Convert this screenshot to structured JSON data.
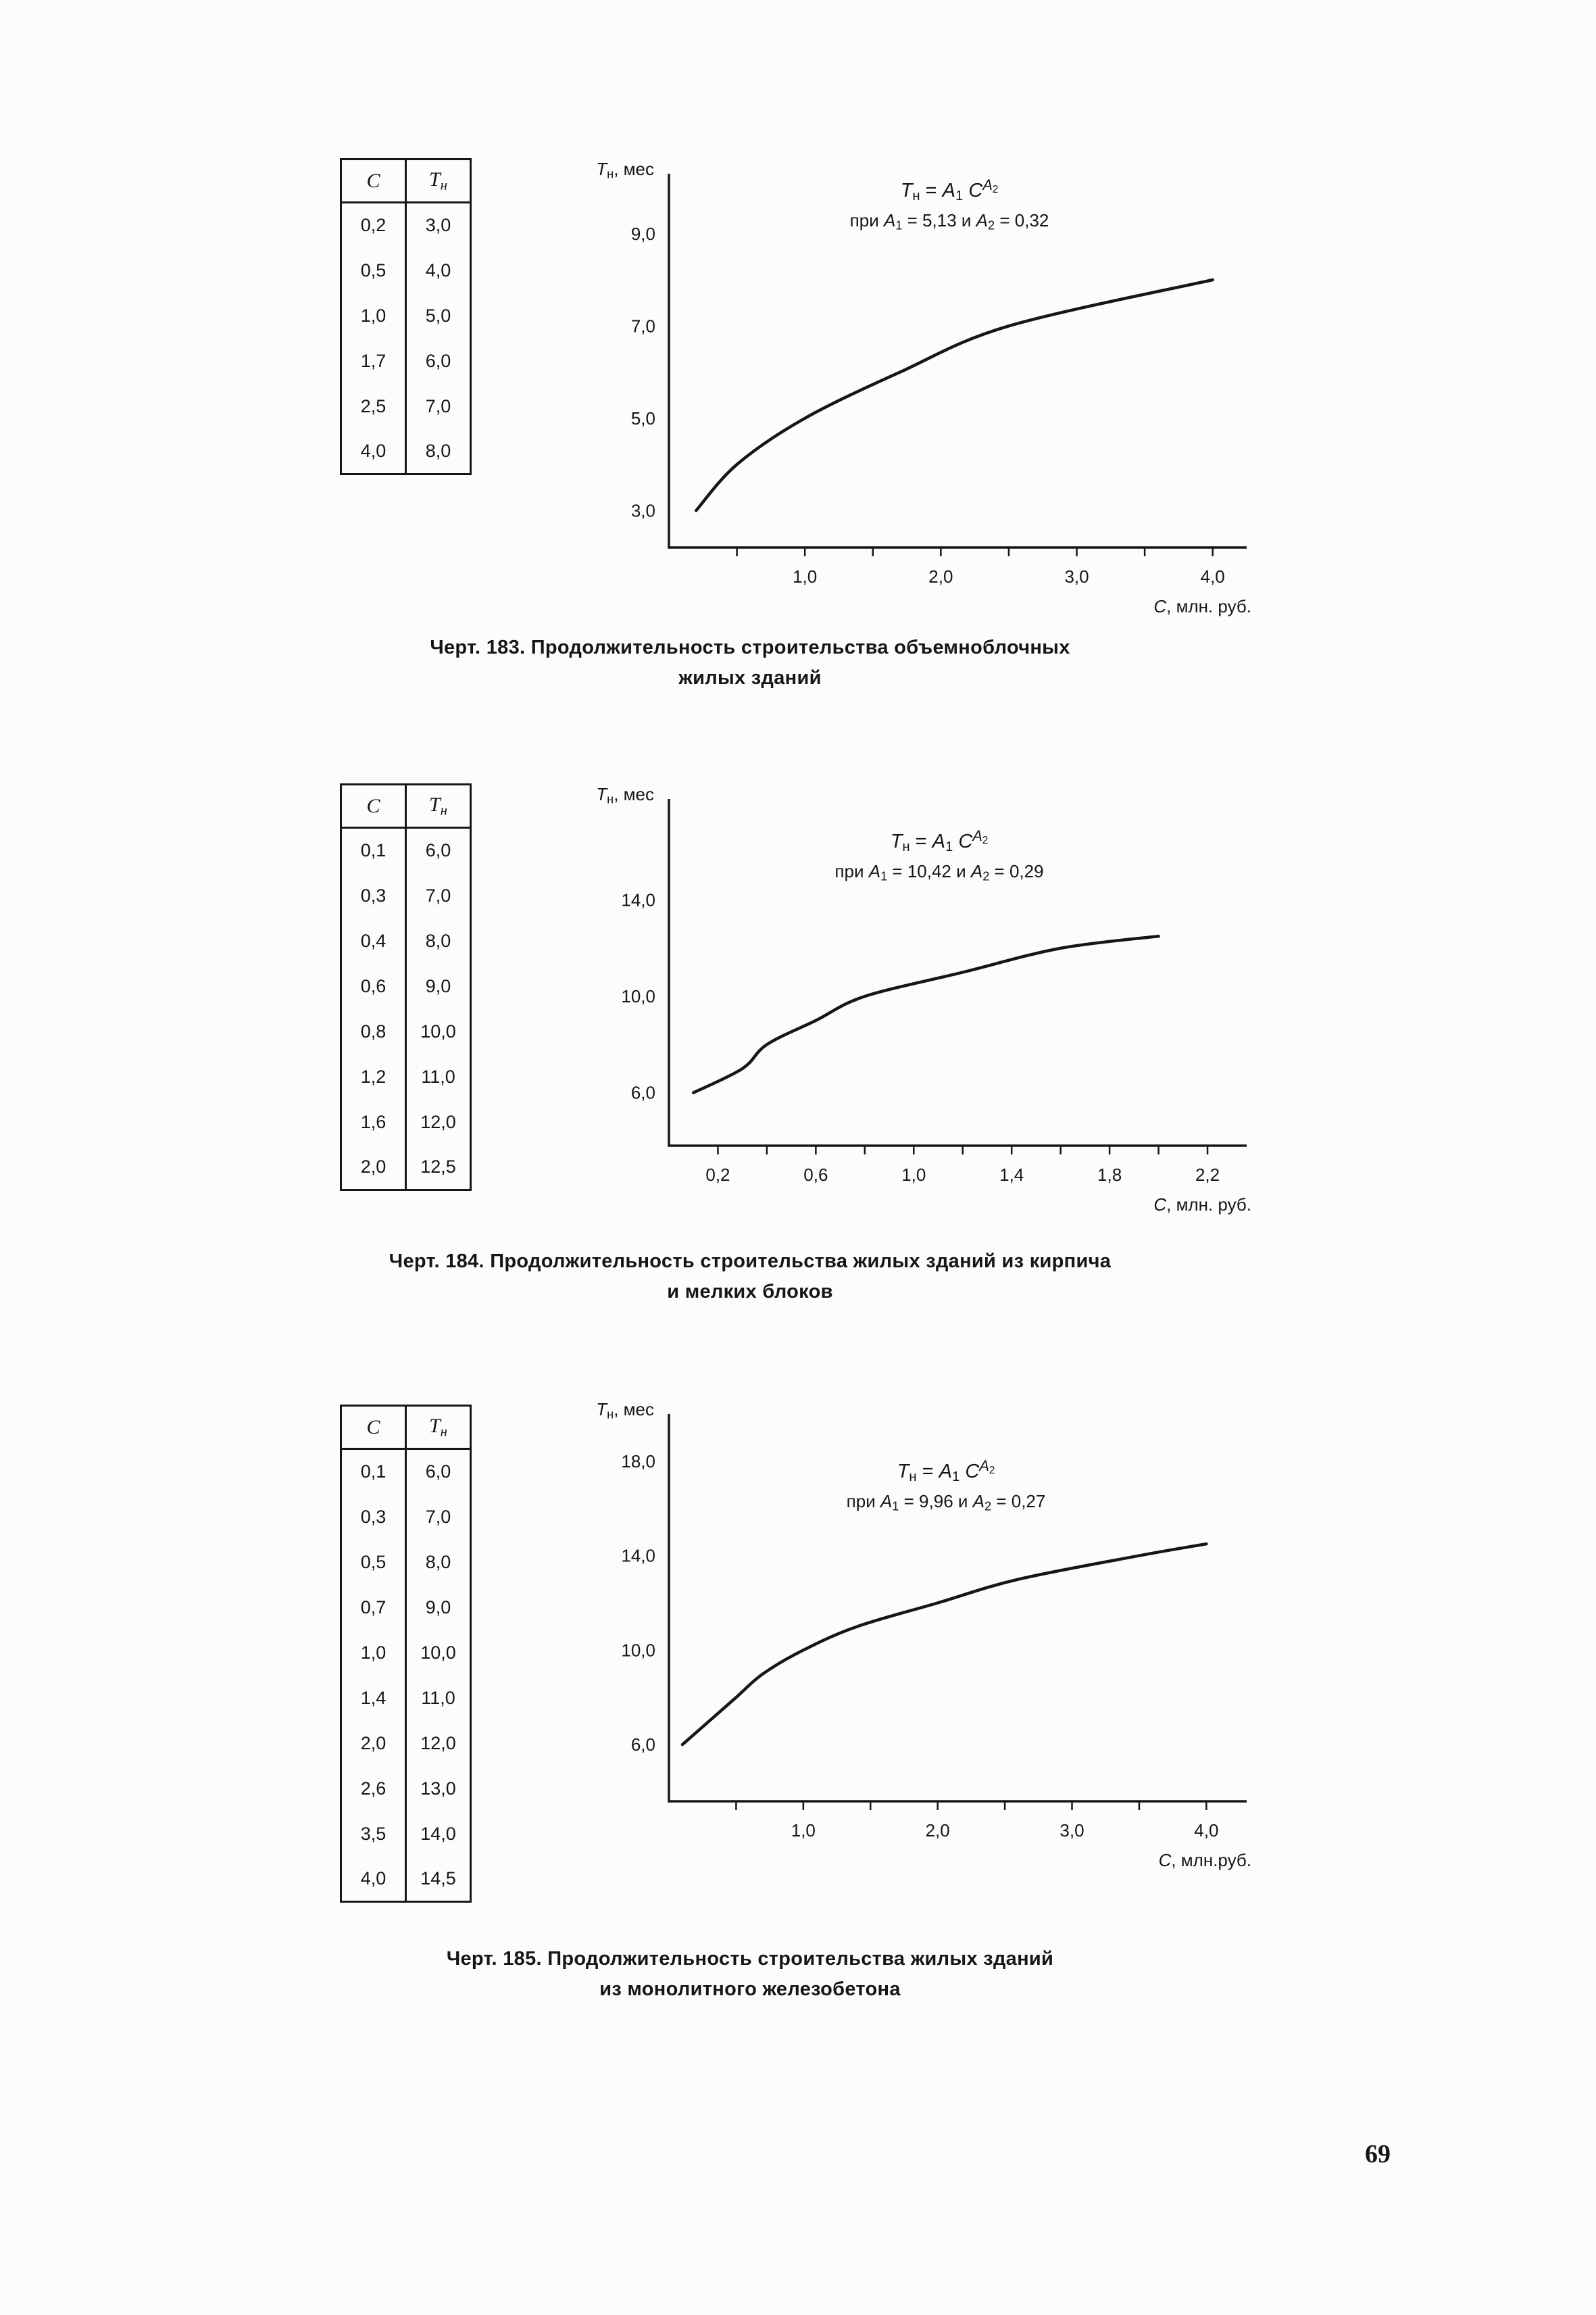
{
  "page": {
    "number": "69",
    "paper_color": "#fcfcfa",
    "ink_color": "#161616"
  },
  "table_headers": [
    "*С*",
    "*Т*_{н}"
  ],
  "chart_data": [
    {
      "type": "line",
      "figure_number": "183",
      "title": "Черт. 183. Продолжительность строительства объемноблочных жилых зданий",
      "caption_lines": [
        "Черт. 183. Продолжительность строительства объемноблочных",
        "жилых зданий"
      ],
      "formula_lines": [
        "*Т*_{н} = *А*_{1} *С*^{*А*_{2}}",
        "при  *А*_{1} = 5,13  и  *А*_{2} = 0,32"
      ],
      "A1": 5.13,
      "A2": 0.32,
      "x": [
        0.2,
        0.5,
        1.0,
        1.7,
        2.5,
        4.0
      ],
      "y": [
        3.0,
        4.0,
        5.0,
        6.0,
        7.0,
        8.0
      ],
      "table_rows": [
        [
          "0,2",
          "3,0"
        ],
        [
          "0,5",
          "4,0"
        ],
        [
          "1,0",
          "5,0"
        ],
        [
          "1,7",
          "6,0"
        ],
        [
          "2,5",
          "7,0"
        ],
        [
          "4,0",
          "8,0"
        ]
      ],
      "xlabel": "*С*, млн. руб.",
      "ylabel": "*Т*_{н}, мес",
      "xlim": [
        0,
        4.25
      ],
      "ylim": [
        2.2,
        10.3
      ],
      "x_ticks": [
        1,
        2,
        3,
        4
      ],
      "x_tick_labels": [
        "1,0",
        "2,0",
        "3,0",
        "4,0"
      ],
      "minor_x_step": 0.5,
      "y_ticks": [
        3,
        5,
        7,
        9
      ],
      "y_tick_labels": [
        "3,0",
        "5,0",
        "7,0",
        "9,0"
      ],
      "grid": false
    },
    {
      "type": "line",
      "figure_number": "184",
      "title": "Черт. 184. Продолжительность строительства жилых зданий из кирпича и мелких блоков",
      "caption_lines": [
        "Черт. 184. Продолжительность строительства жилых зданий из кирпича",
        "и мелких блоков"
      ],
      "formula_lines": [
        "*Т*_{н} = *А*_{1} *С*^{*А*_{2}}",
        "при  *А*_{1} = 10,42  и  *А*_{2} = 0,29"
      ],
      "A1": 10.42,
      "A2": 0.29,
      "x": [
        0.1,
        0.3,
        0.4,
        0.6,
        0.8,
        1.2,
        1.6,
        2.0
      ],
      "y": [
        6.0,
        7.0,
        8.0,
        9.0,
        10.0,
        11.0,
        12.0,
        12.5
      ],
      "table_rows": [
        [
          "0,1",
          "6,0"
        ],
        [
          "0,3",
          "7,0"
        ],
        [
          "0,4",
          "8,0"
        ],
        [
          "0,6",
          "9,0"
        ],
        [
          "0,8",
          "10,0"
        ],
        [
          "1,2",
          "11,0"
        ],
        [
          "1,6",
          "12,0"
        ],
        [
          "2,0",
          "12,5"
        ]
      ],
      "xlabel": "*С*, млн. руб.",
      "ylabel": "*Т*_{н}, мес",
      "xlim": [
        0,
        2.36
      ],
      "ylim": [
        3.8,
        18.2
      ],
      "x_ticks": [
        0.2,
        0.6,
        1.0,
        1.4,
        1.8,
        2.2
      ],
      "x_tick_labels": [
        "0,2",
        "0,6",
        "1,0",
        "1,4",
        "1,8",
        "2,2"
      ],
      "minor_x_step": 0.2,
      "y_ticks": [
        6,
        10,
        14
      ],
      "y_tick_labels": [
        "6,0",
        "10,0",
        "14,0"
      ],
      "grid": false
    },
    {
      "type": "line",
      "figure_number": "185",
      "title": "Черт. 185. Продолжительность строительства жилых зданий из монолитного железобетона",
      "caption_lines": [
        "Черт. 185. Продолжительность строительства жилых зданий",
        "из монолитного железобетона"
      ],
      "formula_lines": [
        "*Т*_{н} = *А*_{1} *С*^{*А*_{2}}",
        "при  *А*_{1} = 9,96  и  *А*_{2} = 0,27"
      ],
      "A1": 9.96,
      "A2": 0.27,
      "x": [
        0.1,
        0.3,
        0.5,
        0.7,
        1.0,
        1.4,
        2.0,
        2.6,
        3.5,
        4.0
      ],
      "y": [
        6.0,
        7.0,
        8.0,
        9.0,
        10.0,
        11.0,
        12.0,
        13.0,
        14.0,
        14.5
      ],
      "table_rows": [
        [
          "0,1",
          "6,0"
        ],
        [
          "0,3",
          "7,0"
        ],
        [
          "0,5",
          "8,0"
        ],
        [
          "0,7",
          "9,0"
        ],
        [
          "1,0",
          "10,0"
        ],
        [
          "1,4",
          "11,0"
        ],
        [
          "2,0",
          "12,0"
        ],
        [
          "2,6",
          "13,0"
        ],
        [
          "3,5",
          "14,0"
        ],
        [
          "4,0",
          "14,5"
        ]
      ],
      "xlabel": "*С*, млн.руб.",
      "ylabel": "*Т*_{н}, мес",
      "xlim": [
        0,
        4.3
      ],
      "ylim": [
        3.6,
        20.0
      ],
      "x_ticks": [
        1,
        2,
        3,
        4
      ],
      "x_tick_labels": [
        "1,0",
        "2,0",
        "3,0",
        "4,0"
      ],
      "minor_x_step": 0.5,
      "y_ticks": [
        6,
        10,
        14,
        18
      ],
      "y_tick_labels": [
        "6,0",
        "10,0",
        "14,0",
        "18,0"
      ],
      "grid": false
    }
  ]
}
